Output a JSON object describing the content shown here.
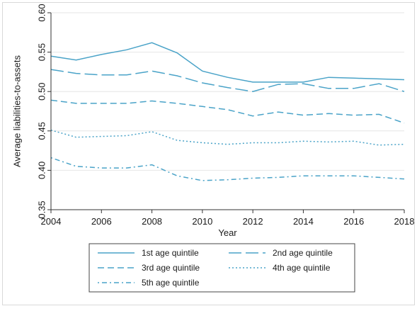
{
  "chart_data": {
    "type": "line",
    "title": "",
    "xlabel": "Year",
    "ylabel": "Average liabilities-to-assets",
    "xlim": [
      2004,
      2018
    ],
    "ylim": [
      0.35,
      0.6
    ],
    "grid": true,
    "legend_position": "bottom",
    "x_ticks": [
      2004,
      2006,
      2008,
      2010,
      2012,
      2014,
      2016,
      2018
    ],
    "x_tick_labels": [
      "2004",
      "2006",
      "2008",
      "2010",
      "2012",
      "2014",
      "2016",
      "2018"
    ],
    "y_ticks": [
      0.35,
      0.4,
      0.45,
      0.5,
      0.55,
      0.6
    ],
    "y_tick_labels": [
      "0.35",
      "0.40",
      "0.45",
      "0.50",
      "0.55",
      "0.60"
    ],
    "x": [
      2004,
      2005,
      2006,
      2007,
      2008,
      2009,
      2010,
      2011,
      2012,
      2013,
      2014,
      2015,
      2016,
      2017,
      2018
    ],
    "series": [
      {
        "name": "1st age quintile",
        "style": "solid",
        "color": "#4aa3c8",
        "values": [
          0.545,
          0.54,
          0.547,
          0.553,
          0.562,
          0.549,
          0.526,
          0.518,
          0.512,
          0.512,
          0.512,
          0.518,
          0.517,
          0.516,
          0.515
        ]
      },
      {
        "name": "2nd age quintile",
        "style": "longdash",
        "color": "#4aa3c8",
        "values": [
          0.528,
          0.523,
          0.521,
          0.521,
          0.526,
          0.52,
          0.511,
          0.505,
          0.5,
          0.509,
          0.51,
          0.504,
          0.504,
          0.51,
          0.5
        ]
      },
      {
        "name": "3rd age quintile",
        "style": "dash",
        "color": "#4aa3c8",
        "values": [
          0.489,
          0.485,
          0.485,
          0.485,
          0.488,
          0.485,
          0.481,
          0.477,
          0.469,
          0.474,
          0.47,
          0.472,
          0.47,
          0.471,
          0.46
        ]
      },
      {
        "name": "4th age quintile",
        "style": "dot",
        "color": "#4aa3c8",
        "values": [
          0.451,
          0.442,
          0.443,
          0.444,
          0.449,
          0.438,
          0.435,
          0.433,
          0.435,
          0.435,
          0.437,
          0.436,
          0.437,
          0.432,
          0.433
        ]
      },
      {
        "name": "5th age quintile",
        "style": "dashdot",
        "color": "#4aa3c8",
        "values": [
          0.416,
          0.405,
          0.403,
          0.403,
          0.407,
          0.393,
          0.387,
          0.388,
          0.39,
          0.391,
          0.393,
          0.393,
          0.393,
          0.391,
          0.389
        ]
      }
    ]
  }
}
